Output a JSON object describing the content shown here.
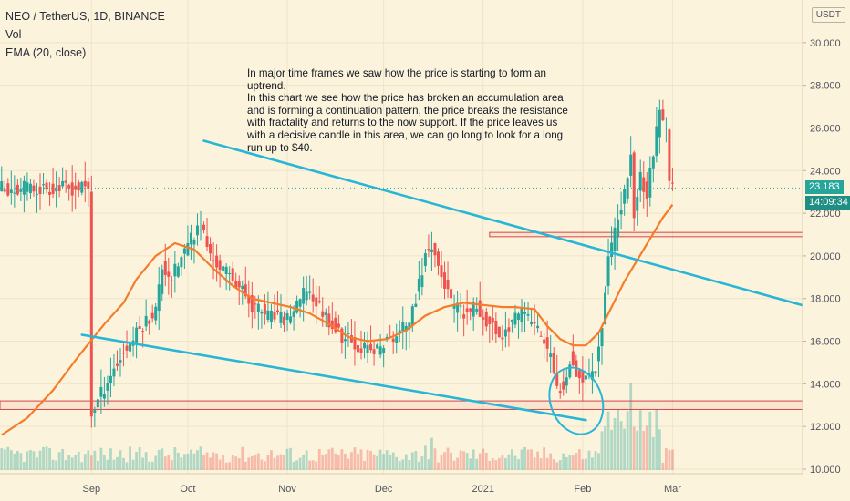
{
  "legend": {
    "symbol": "NEO / TetherUS, 1D, BINANCE",
    "volume": "Vol",
    "ema": "EMA (20, close)"
  },
  "annotation": {
    "line1": "In major time frames we saw how the price is starting to form an uptrend.",
    "line2": "In this chart we see how the price has broken an accumulation area and is forming a continuation pattern, the price breaks the resistance with fractality and returns to the now support. If the price leaves us with a decisive candle in this area, we can go long to look for a long run up to $40."
  },
  "axis": {
    "currency": "USDT",
    "last_price": "23.183",
    "countdown": "14:09:34"
  },
  "colors": {
    "background": "#fbf3dc",
    "up_candle": "#26a69a",
    "down_candle": "#ef5350",
    "ema": "#f57c2a",
    "trendline": "#29b6d6",
    "zone": "#d64545",
    "price_badge": "#26a69a",
    "countdown_badge": "#1f8f84"
  },
  "chart_data": {
    "type": "candlestick",
    "y_ticks": [
      "10.000",
      "12.000",
      "14.000",
      "16.000",
      "18.000",
      "20.000",
      "22.000",
      "24.000",
      "26.000",
      "28.000",
      "30.000"
    ],
    "x_ticks": [
      "Sep",
      "Oct",
      "Nov",
      "Dec",
      "2021",
      "Feb",
      "Mar"
    ],
    "ylim": [
      10,
      32
    ],
    "x_range_days": [
      -28.5,
      221.5
    ],
    "months_days": [
      0,
      30,
      61,
      91,
      122,
      153,
      181
    ],
    "last_price": 23.183,
    "ohlc_path": [
      [
        0,
        12.6
      ],
      [
        5,
        14.2
      ],
      [
        10,
        15.5
      ],
      [
        16,
        16.8
      ],
      [
        20,
        17.5
      ],
      [
        22,
        19.5
      ],
      [
        25,
        19.0
      ],
      [
        30,
        20.5
      ],
      [
        34,
        21.5
      ],
      [
        37,
        20.0
      ],
      [
        40,
        19.5
      ],
      [
        45,
        18.8
      ],
      [
        50,
        17.7
      ],
      [
        55,
        17.2
      ],
      [
        60,
        17.0
      ],
      [
        64,
        17.6
      ],
      [
        67,
        18.5
      ],
      [
        70,
        17.8
      ],
      [
        74,
        17.0
      ],
      [
        78,
        16.2
      ],
      [
        83,
        15.8
      ],
      [
        88,
        15.5
      ],
      [
        92,
        16.0
      ],
      [
        96,
        16.4
      ],
      [
        100,
        17.3
      ],
      [
        104,
        20.0
      ],
      [
        106,
        20.6
      ],
      [
        108,
        19.5
      ],
      [
        112,
        17.8
      ],
      [
        116,
        17.2
      ],
      [
        120,
        17.6
      ],
      [
        124,
        16.8
      ],
      [
        128,
        16.2
      ],
      [
        131,
        17.0
      ],
      [
        135,
        17.3
      ],
      [
        138,
        16.8
      ],
      [
        141,
        16.0
      ],
      [
        143,
        15.2
      ],
      [
        145,
        13.7
      ],
      [
        147,
        14.0
      ],
      [
        149,
        15.2
      ],
      [
        151,
        14.6
      ],
      [
        153,
        14.2
      ],
      [
        155,
        14.5
      ],
      [
        157,
        14.9
      ],
      [
        159,
        16.8
      ],
      [
        161,
        20.0
      ],
      [
        163,
        21.0
      ],
      [
        166,
        23.0
      ],
      [
        168,
        24.6
      ],
      [
        169,
        22.0
      ],
      [
        171,
        23.8
      ],
      [
        173,
        22.8
      ],
      [
        175,
        25.0
      ],
      [
        177,
        26.6
      ],
      [
        179,
        25.8
      ],
      [
        180,
        23.6
      ],
      [
        181,
        23.18
      ]
    ],
    "ema_points": [
      [
        -28,
        11.6
      ],
      [
        -20,
        12.4
      ],
      [
        -12,
        13.7
      ],
      [
        -4,
        15.3
      ],
      [
        4,
        16.8
      ],
      [
        10,
        17.8
      ],
      [
        14,
        18.9
      ],
      [
        20,
        20.0
      ],
      [
        26,
        20.6
      ],
      [
        32,
        20.3
      ],
      [
        38,
        19.4
      ],
      [
        44,
        18.6
      ],
      [
        50,
        18.0
      ],
      [
        56,
        17.8
      ],
      [
        62,
        17.6
      ],
      [
        68,
        17.3
      ],
      [
        74,
        16.8
      ],
      [
        80,
        16.2
      ],
      [
        86,
        16.0
      ],
      [
        92,
        16.1
      ],
      [
        98,
        16.5
      ],
      [
        104,
        17.2
      ],
      [
        110,
        17.6
      ],
      [
        116,
        17.8
      ],
      [
        122,
        17.7
      ],
      [
        128,
        17.6
      ],
      [
        132,
        17.6
      ],
      [
        138,
        17.5
      ],
      [
        142,
        16.7
      ],
      [
        146,
        16.1
      ],
      [
        150,
        15.8
      ],
      [
        154,
        15.8
      ],
      [
        158,
        16.4
      ],
      [
        162,
        17.6
      ],
      [
        166,
        18.8
      ],
      [
        170,
        19.8
      ],
      [
        174,
        20.8
      ],
      [
        178,
        21.8
      ],
      [
        181,
        22.4
      ]
    ],
    "trendlines": [
      {
        "from": [
          35,
          25.4
        ],
        "to": [
          238,
          17.0
        ]
      },
      {
        "from": [
          -3,
          16.3
        ],
        "to": [
          154,
          12.3
        ]
      }
    ],
    "zones": [
      {
        "y1": 21.1,
        "y2": 20.9,
        "x1": 124,
        "x2": 226
      },
      {
        "y1": 13.2,
        "y2": 12.8,
        "x1": -28.5,
        "x2": 221.5
      }
    ],
    "circle": {
      "cx": 151,
      "cy": 13.2,
      "rx": 8,
      "ry": 1.6
    }
  }
}
